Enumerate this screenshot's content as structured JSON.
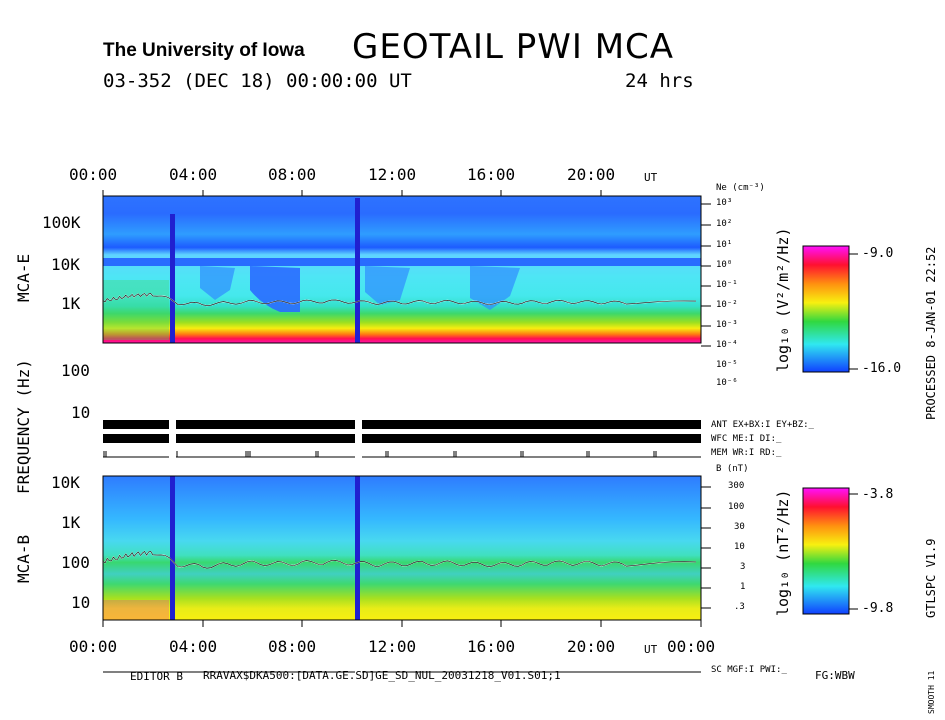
{
  "header": {
    "university": "The University of Iowa",
    "title": "GEOTAIL PWI MCA",
    "date_line": "03-352 (DEC 18) 00:00:00 UT",
    "duration": "24 hrs"
  },
  "colors": {
    "background": "#1e64ff",
    "marker": "#2020d0",
    "trace": "#ffffff"
  },
  "top_panel": {
    "ylabel": "MCA-E",
    "yticks": [
      "100K",
      "10K",
      "1K",
      "100",
      "10"
    ],
    "right_axis_label": "Ne (cm⁻³)",
    "ne_ticks": [
      "10³",
      "10²",
      "10¹",
      "10⁰",
      "10⁻¹",
      "10⁻²",
      "10⁻³",
      "10⁻⁴",
      "10⁻⁵",
      "10⁻⁶"
    ],
    "colorbar_label": "log₁₀ (V²/m²/Hz)",
    "colorbar_max": "-9.0",
    "colorbar_min": "-16.0"
  },
  "bottom_panel": {
    "ylabel": "MCA-B",
    "yticks": [
      "10K",
      "1K",
      "100",
      "10"
    ],
    "right_axis_label": "B (nT)",
    "b_ticks": [
      "300",
      "100",
      "30",
      "10",
      "3",
      "1",
      ".3"
    ],
    "colorbar_label": "log₁₀ (nT²/Hz)",
    "colorbar_max": "-3.8",
    "colorbar_min": "-9.8"
  },
  "shared_ylabel": "FREQUENCY (Hz)",
  "top_xticks": [
    "00:00",
    "04:00",
    "08:00",
    "12:00",
    "16:00",
    "20:00"
  ],
  "bottom_xticks": [
    "00:00",
    "04:00",
    "08:00",
    "12:00",
    "16:00",
    "20:00",
    "00:00"
  ],
  "ut_label": "UT",
  "status": {
    "ant": "ANT EX+BX:I EY+BZ:_",
    "wfc": "WFC ME:I    DI:_",
    "mem": "MEM WR:I    RD:_",
    "sc": "SC MGF:I    PWI:_"
  },
  "footer": {
    "editor": "EDITOR B",
    "path": "RRAVAX$DKA500:[DATA.GE.SD]GE_SD_NUL_20031218_V01.S01;1",
    "fg": "FG:WBW"
  },
  "side": {
    "processed": "PROCESSED 8-JAN-01 22:52",
    "gtlspc": "GTLSPC V1.9",
    "smooth": "SMOOTH 11"
  },
  "chart_data": [
    {
      "type": "heatmap",
      "title": "MCA-E",
      "x_range_hours": [
        0,
        24
      ],
      "xlabel": "UT",
      "ylabel": "FREQUENCY (Hz)",
      "y_scale": "log",
      "y_range_hz": [
        5.6,
        311000
      ],
      "color_range": [
        -16.0,
        -9.0
      ],
      "data_gaps_hours": [
        [
          2.7,
          2.95
        ],
        [
          10.1,
          10.3
        ]
      ],
      "plasma_line_hz": [
        130,
        150,
        180,
        200,
        210,
        110,
        100,
        110,
        120,
        115,
        120,
        125,
        120,
        110,
        115,
        118,
        120,
        112,
        110,
        115,
        120,
        118,
        115,
        112,
        115
      ],
      "plasma_line_x_hours": [
        0.0,
        0.5,
        1.0,
        1.5,
        2.0,
        3.0,
        4.0,
        5.0,
        6.0,
        7.0,
        8.0,
        9.0,
        10.0,
        11.0,
        12.0,
        13.0,
        14.0,
        15.0,
        16.0,
        17.0,
        18.0,
        19.0,
        20.0,
        21.0,
        23.8
      ]
    },
    {
      "type": "heatmap",
      "title": "MCA-B",
      "x_range_hours": [
        0,
        24
      ],
      "xlabel": "UT",
      "ylabel": "FREQUENCY (Hz)",
      "y_scale": "log",
      "y_range_hz": [
        5.6,
        12700
      ],
      "color_range": [
        -9.8,
        -3.8
      ],
      "data_gaps_hours": [
        [
          2.7,
          2.95
        ],
        [
          10.1,
          10.3
        ]
      ],
      "plasma_line_hz": [
        130,
        150,
        180,
        200,
        210,
        110,
        100,
        110,
        120,
        115,
        120,
        125,
        120,
        110,
        115,
        118,
        120,
        112,
        110,
        115,
        120,
        118,
        115,
        112,
        115
      ],
      "plasma_line_x_hours": [
        0.0,
        0.5,
        1.0,
        1.5,
        2.0,
        3.0,
        4.0,
        5.0,
        6.0,
        7.0,
        8.0,
        9.0,
        10.0,
        11.0,
        12.0,
        13.0,
        14.0,
        15.0,
        16.0,
        17.0,
        18.0,
        19.0,
        20.0,
        21.0,
        23.8
      ]
    }
  ]
}
